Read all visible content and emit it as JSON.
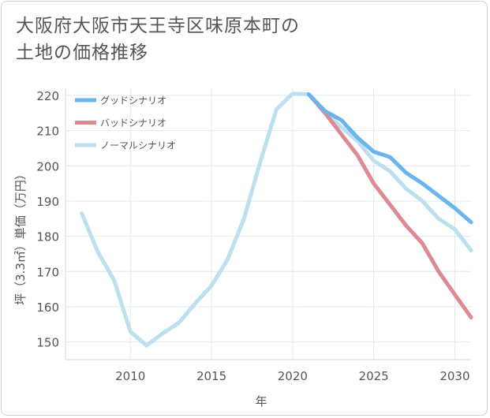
{
  "title_lines": [
    "大阪府大阪市天王寺区味原本町の",
    "土地の価格推移"
  ],
  "chart_data": {
    "type": "line",
    "xlabel": "年",
    "ylabel": "坪（3.3㎡）単価（万円）",
    "xlim": [
      2006,
      2031
    ],
    "ylim": [
      145,
      222
    ],
    "x_ticks": [
      2010,
      2015,
      2020,
      2025,
      2030
    ],
    "y_ticks": [
      150,
      160,
      170,
      180,
      190,
      200,
      210,
      220
    ],
    "grid": true,
    "legend_position": "top-left",
    "series": [
      {
        "name": "グッドシナリオ",
        "color": "#6cb4ec",
        "x": [
          2021,
          2022,
          2023,
          2024,
          2025,
          2026,
          2027,
          2028,
          2029,
          2030,
          2031
        ],
        "y": [
          220.3,
          215.5,
          213,
          208,
          204,
          202.5,
          198,
          195,
          191.5,
          188,
          184
        ]
      },
      {
        "name": "バッドシナリオ",
        "color": "#dd8a93",
        "x": [
          2021,
          2022,
          2023,
          2024,
          2025,
          2026,
          2027,
          2028,
          2029,
          2030,
          2031
        ],
        "y": [
          220.3,
          215,
          209,
          203,
          195,
          189,
          183,
          178,
          170,
          163.5,
          157
        ]
      },
      {
        "name": "ノーマルシナリオ",
        "color": "#bde0ef",
        "x": [
          2007,
          2008,
          2009,
          2010,
          2011,
          2012,
          2013,
          2014,
          2015,
          2016,
          2017,
          2018,
          2019,
          2020,
          2021,
          2022,
          2023,
          2024,
          2025,
          2026,
          2027,
          2028,
          2029,
          2030,
          2031
        ],
        "y": [
          186.5,
          175.5,
          167.5,
          153,
          149,
          152.5,
          155.5,
          161,
          166,
          173.5,
          185,
          201,
          216,
          220.5,
          220.3,
          215,
          211,
          207,
          201.5,
          198.5,
          193.5,
          190,
          185,
          182,
          176
        ]
      }
    ]
  }
}
